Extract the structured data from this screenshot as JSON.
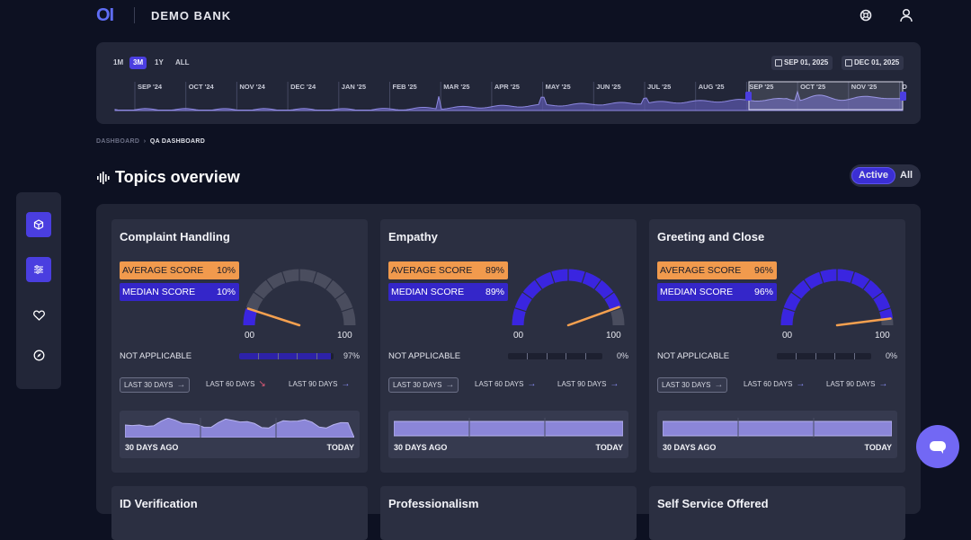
{
  "brand": {
    "logo": "OI",
    "name": "DEMO BANK"
  },
  "timeline": {
    "ranges": [
      "1M",
      "3M",
      "1Y",
      "ALL"
    ],
    "active_range": "3M",
    "start_date": "SEP 01, 2025",
    "end_date": "DEC 01, 2025",
    "months": [
      "SEP '24",
      "OCT '24",
      "NOV '24",
      "DEC '24",
      "JAN '25",
      "FEB '25",
      "MAR '25",
      "APR '25",
      "MAY '25",
      "JUN '25",
      "JUL '25",
      "AUG '25",
      "SEP '25",
      "OCT '25",
      "NOV '25",
      "D"
    ]
  },
  "breadcrumb": {
    "parent": "DASHBOARD",
    "current": "QA DASHBOARD"
  },
  "page": {
    "title": "Topics overview"
  },
  "filter": {
    "active_label": "Active",
    "all_label": "All"
  },
  "sidebar": {
    "icons": [
      "cube-icon",
      "sliders-icon",
      "heart-icon",
      "compass-icon"
    ]
  },
  "labels": {
    "avg_score": "AVERAGE SCORE",
    "median_score": "MEDIAN SCORE",
    "gauge_min": "00",
    "gauge_max": "100",
    "not_applicable": "NOT APPLICABLE",
    "last30": "LAST 30 DAYS",
    "last60": "LAST 60 DAYS",
    "last90": "LAST 90 DAYS",
    "ago": "30 DAYS AGO",
    "today": "TODAY"
  },
  "topics": [
    {
      "name": "Complaint Handling",
      "avg": "10%",
      "median": "10%",
      "gauge": 0.1,
      "na": "97%",
      "na_fill": 0.97,
      "trend60": "down"
    },
    {
      "name": "Empathy",
      "avg": "89%",
      "median": "89%",
      "gauge": 0.89,
      "na": "0%",
      "na_fill": 0,
      "trend60": "up"
    },
    {
      "name": "Greeting and Close",
      "avg": "96%",
      "median": "96%",
      "gauge": 0.96,
      "na": "0%",
      "na_fill": 0,
      "trend60": "up"
    }
  ],
  "lower_topics": [
    "ID Verification",
    "Professionalism",
    "Self Service Offered"
  ],
  "colors": {
    "accent": "#4b3ee0",
    "avg_badge": "#f19a4d",
    "median_badge": "#3426c9",
    "gauge_fill": "#3a25e0",
    "needle": "#f5a04f"
  }
}
